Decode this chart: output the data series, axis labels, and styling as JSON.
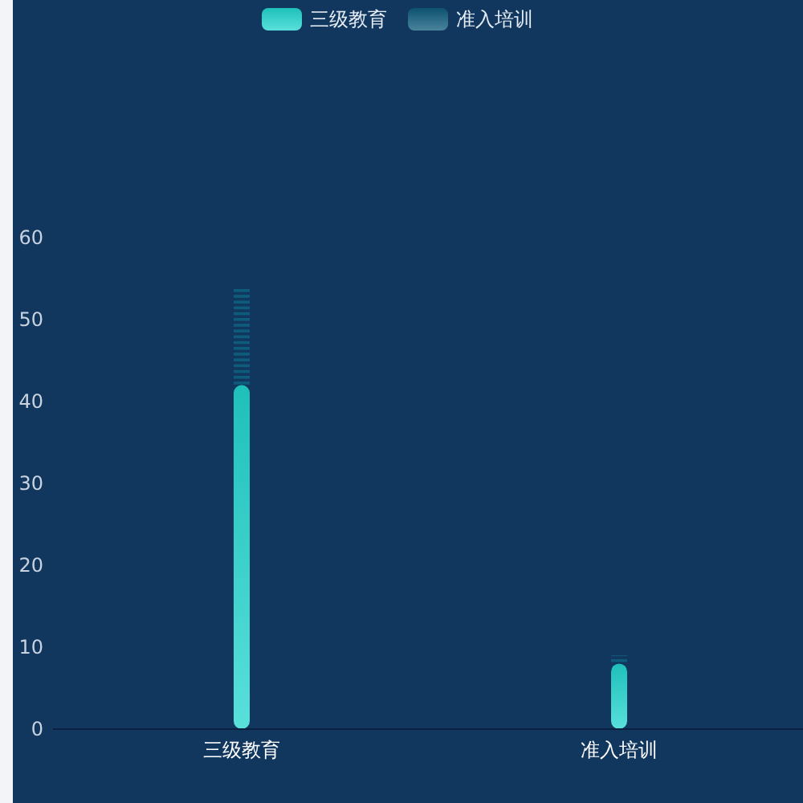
{
  "chart_data": {
    "type": "bar",
    "stacked": true,
    "categories": [
      "三级教育",
      "准入培训"
    ],
    "series": [
      {
        "name": "三级教育",
        "color": "#22d5cf",
        "values": [
          42,
          8
        ]
      },
      {
        "name": "准入培训",
        "color": "#0e5b7c",
        "values": [
          12,
          1
        ]
      }
    ],
    "ylim": [
      0,
      60
    ],
    "yticks": [
      0,
      10,
      20,
      30,
      40,
      50,
      60
    ],
    "grid": false,
    "legend": "top"
  }
}
